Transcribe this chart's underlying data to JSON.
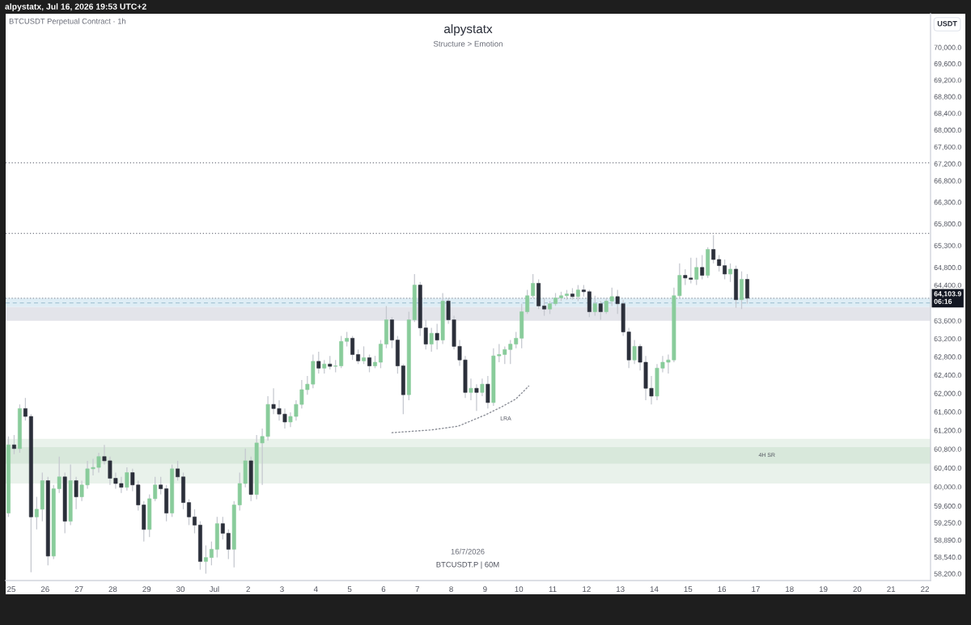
{
  "chart_data": {
    "type": "candlestick",
    "title": "alpystatx",
    "subtitle": "Structure > Emotion",
    "ylabel": "USDT",
    "annotations": [
      "alpystatx, Jul 16, 2026 19:53 UTC+2",
      "BTCUSDT Perpetual Contract · 1h",
      "16/7/2026",
      "BTCUSDT.P | 60M",
      "LRA"
    ],
    "log": "y",
    "grid": false,
    "xlim": [
      "2026-06-24T20:00",
      "2026-07-22T04:00"
    ],
    "ylim": [
      58060,
      70830
    ],
    "xticks": [
      {
        "value": "2026-06-25",
        "label": "25"
      },
      {
        "value": "2026-06-26",
        "label": "26"
      },
      {
        "value": "2026-06-27",
        "label": "27"
      },
      {
        "value": "2026-06-28",
        "label": "28"
      },
      {
        "value": "2026-06-29",
        "label": "29"
      },
      {
        "value": "2026-06-30",
        "label": "30"
      },
      {
        "value": "2026-07-01",
        "label": "Jul"
      },
      {
        "value": "2026-07-02",
        "label": "2"
      },
      {
        "value": "2026-07-03",
        "label": "3"
      },
      {
        "value": "2026-07-04",
        "label": "4"
      },
      {
        "value": "2026-07-05",
        "label": "5"
      },
      {
        "value": "2026-07-06",
        "label": "6"
      },
      {
        "value": "2026-07-07",
        "label": "7"
      },
      {
        "value": "2026-07-08",
        "label": "8"
      },
      {
        "value": "2026-07-09",
        "label": "9"
      },
      {
        "value": "2026-07-10",
        "label": "10"
      },
      {
        "value": "2026-07-11",
        "label": "11"
      },
      {
        "value": "2026-07-12",
        "label": "12"
      },
      {
        "value": "2026-07-13",
        "label": "13"
      },
      {
        "value": "2026-07-14",
        "label": "14"
      },
      {
        "value": "2026-07-15",
        "label": "15"
      },
      {
        "value": "2026-07-16",
        "label": "16"
      },
      {
        "value": "2026-07-17",
        "label": "17"
      },
      {
        "value": "2026-07-18",
        "label": "18"
      },
      {
        "value": "2026-07-19",
        "label": "19"
      },
      {
        "value": "2026-07-20",
        "label": "20"
      },
      {
        "value": "2026-07-21",
        "label": "21"
      },
      {
        "value": "2026-07-22",
        "label": "22"
      }
    ],
    "yticks": [
      {
        "value": 70000,
        "label": "70,000.0"
      },
      {
        "value": 69600,
        "label": "69,600.0"
      },
      {
        "value": 69200,
        "label": "69,200.0"
      },
      {
        "value": 68800,
        "label": "68,800.0"
      },
      {
        "value": 68400,
        "label": "68,400.0"
      },
      {
        "value": 68000,
        "label": "68,000.0"
      },
      {
        "value": 67600,
        "label": "67,600.0"
      },
      {
        "value": 67200,
        "label": "67,200.0"
      },
      {
        "value": 66800,
        "label": "66,800.0"
      },
      {
        "value": 66300,
        "label": "66,300.0"
      },
      {
        "value": 65800,
        "label": "65,800.0"
      },
      {
        "value": 65300,
        "label": "65,300.0"
      },
      {
        "value": 64800,
        "label": "64,800.0"
      },
      {
        "value": 64400,
        "label": "64,400.0"
      },
      {
        "value": 63600,
        "label": "63,600.0"
      },
      {
        "value": 63200,
        "label": "63,200.0"
      },
      {
        "value": 62800,
        "label": "62,800.0"
      },
      {
        "value": 62400,
        "label": "62,400.0"
      },
      {
        "value": 62000,
        "label": "62,000.0"
      },
      {
        "value": 61600,
        "label": "61,600.0"
      },
      {
        "value": 61200,
        "label": "61,200.0"
      },
      {
        "value": 60800,
        "label": "60,800.0"
      },
      {
        "value": 60400,
        "label": "60,400.0"
      },
      {
        "value": 60000,
        "label": "60,000.0"
      },
      {
        "value": 59600,
        "label": "59,600.0"
      },
      {
        "value": 59250,
        "label": "59,250.0"
      },
      {
        "value": 58890,
        "label": "58,890.0"
      },
      {
        "value": 58540,
        "label": "58,540.0"
      },
      {
        "value": 58200,
        "label": "58,200.0"
      }
    ],
    "bands": [
      {
        "axis": "y",
        "from": 63600,
        "to": 63910,
        "color": "#e3e4ea"
      },
      {
        "axis": "y",
        "from": 63910,
        "to": 64110,
        "color": "#deedf5"
      },
      {
        "axis": "y",
        "from": 60070,
        "to": 61020,
        "color": "#e9f2eb"
      },
      {
        "axis": "y",
        "from": 60490,
        "to": 60840,
        "color": "#d8e8db",
        "label": "4H SR"
      }
    ],
    "ref_lines": [
      {
        "axis": "y",
        "value": 67220,
        "line_style": "dotted",
        "color": "#787b86"
      },
      {
        "axis": "y",
        "value": 65580,
        "line_style": "dotted",
        "color": "#787b86"
      },
      {
        "axis": "y",
        "value": 64000,
        "line_style": "dashed",
        "color": "#a9c6d6"
      },
      {
        "axis": "y",
        "value": 64103.9,
        "line_style": "dotted",
        "color": "#9598a1",
        "label": "64,103.9\n06:16"
      }
    ],
    "series": [
      {
        "type": "line",
        "line_style": "dotted",
        "color": "#8a8d96",
        "x": [
          "2026-07-06T06:00",
          "2026-07-07T10:00",
          "2026-07-08T05:00",
          "2026-07-09T00:00",
          "2026-07-09T12:00",
          "2026-07-09T22:00",
          "2026-07-10T07:00"
        ],
        "values": [
          61150,
          61210,
          61290,
          61530,
          61710,
          61880,
          62160
        ]
      },
      {
        "color": "#c5c8cf",
        "x": [
          "2026-06-24T22:00",
          "2026-06-25T02:00",
          "2026-06-25T06:00",
          "2026-06-25T10:00",
          "2026-06-25T14:00",
          "2026-06-25T18:00",
          "2026-06-25T22:00",
          "2026-06-26T02:00",
          "2026-06-26T06:00",
          "2026-06-26T10:00",
          "2026-06-26T14:00",
          "2026-06-26T18:00",
          "2026-06-26T22:00",
          "2026-06-27T02:00",
          "2026-06-27T06:00",
          "2026-06-27T10:00",
          "2026-06-27T14:00",
          "2026-06-27T18:00",
          "2026-06-27T22:00",
          "2026-06-28T02:00",
          "2026-06-28T06:00",
          "2026-06-28T10:00",
          "2026-06-28T14:00",
          "2026-06-28T18:00",
          "2026-06-28T22:00",
          "2026-06-29T02:00",
          "2026-06-29T06:00",
          "2026-06-29T10:00",
          "2026-06-29T14:00",
          "2026-06-29T18:00",
          "2026-06-29T22:00",
          "2026-06-30T02:00",
          "2026-06-30T06:00",
          "2026-06-30T10:00",
          "2026-06-30T14:00",
          "2026-06-30T18:00",
          "2026-06-30T22:00",
          "2026-07-01T02:00",
          "2026-07-01T06:00",
          "2026-07-01T10:00",
          "2026-07-01T14:00",
          "2026-07-01T18:00",
          "2026-07-01T22:00",
          "2026-07-02T02:00",
          "2026-07-02T06:00",
          "2026-07-02T10:00",
          "2026-07-02T14:00",
          "2026-07-02T18:00",
          "2026-07-02T22:00",
          "2026-07-03T02:00",
          "2026-07-03T06:00",
          "2026-07-03T10:00",
          "2026-07-03T14:00",
          "2026-07-03T18:00",
          "2026-07-03T22:00",
          "2026-07-04T02:00",
          "2026-07-04T06:00",
          "2026-07-04T10:00",
          "2026-07-04T14:00",
          "2026-07-04T18:00",
          "2026-07-04T22:00",
          "2026-07-05T02:00",
          "2026-07-05T06:00",
          "2026-07-05T10:00",
          "2026-07-05T14:00",
          "2026-07-05T18:00",
          "2026-07-05T22:00",
          "2026-07-06T02:00",
          "2026-07-06T06:00",
          "2026-07-06T10:00",
          "2026-07-06T14:00",
          "2026-07-06T18:00",
          "2026-07-06T22:00",
          "2026-07-07T02:00",
          "2026-07-07T06:00",
          "2026-07-07T10:00",
          "2026-07-07T14:00",
          "2026-07-07T18:00",
          "2026-07-07T22:00",
          "2026-07-08T02:00",
          "2026-07-08T06:00",
          "2026-07-08T10:00",
          "2026-07-08T14:00",
          "2026-07-08T18:00",
          "2026-07-08T22:00",
          "2026-07-09T02:00",
          "2026-07-09T06:00",
          "2026-07-09T10:00",
          "2026-07-09T14:00",
          "2026-07-09T18:00",
          "2026-07-09T22:00",
          "2026-07-10T02:00",
          "2026-07-10T06:00",
          "2026-07-10T10:00",
          "2026-07-10T14:00",
          "2026-07-10T18:00",
          "2026-07-10T22:00",
          "2026-07-11T02:00",
          "2026-07-11T06:00",
          "2026-07-11T10:00",
          "2026-07-11T14:00",
          "2026-07-11T18:00",
          "2026-07-11T22:00",
          "2026-07-12T02:00",
          "2026-07-12T06:00",
          "2026-07-12T10:00",
          "2026-07-12T14:00",
          "2026-07-12T18:00",
          "2026-07-12T22:00",
          "2026-07-13T02:00",
          "2026-07-13T06:00",
          "2026-07-13T10:00",
          "2026-07-13T14:00",
          "2026-07-13T18:00",
          "2026-07-13T22:00",
          "2026-07-14T02:00",
          "2026-07-14T06:00",
          "2026-07-14T10:00",
          "2026-07-14T14:00",
          "2026-07-14T18:00",
          "2026-07-14T22:00",
          "2026-07-15T02:00",
          "2026-07-15T06:00",
          "2026-07-15T10:00",
          "2026-07-15T14:00",
          "2026-07-15T18:00",
          "2026-07-15T22:00",
          "2026-07-16T02:00",
          "2026-07-16T06:00",
          "2026-07-16T10:00",
          "2026-07-16T14:00",
          "2026-07-16T18:00"
        ],
        "ohlc": [
          [
            59450,
            61070,
            59370,
            60890
          ],
          [
            60890,
            61100,
            60690,
            60810
          ],
          [
            60810,
            61760,
            60720,
            61670
          ],
          [
            61670,
            61900,
            61410,
            61500
          ],
          [
            61500,
            61550,
            58230,
            59370
          ],
          [
            59370,
            59790,
            59110,
            59530
          ],
          [
            59530,
            60300,
            59280,
            60130
          ],
          [
            60130,
            60210,
            58370,
            58560
          ],
          [
            58560,
            60040,
            58500,
            59960
          ],
          [
            59960,
            60640,
            59870,
            60210
          ],
          [
            60210,
            60300,
            59030,
            59280
          ],
          [
            59280,
            60470,
            59200,
            60130
          ],
          [
            60130,
            60210,
            59530,
            59790
          ],
          [
            59790,
            60130,
            59700,
            60040
          ],
          [
            60040,
            60550,
            59960,
            60380
          ],
          [
            60380,
            60590,
            60240,
            60410
          ],
          [
            60410,
            60720,
            60300,
            60640
          ],
          [
            60640,
            60890,
            60470,
            60550
          ],
          [
            60550,
            60640,
            60040,
            60180
          ],
          [
            60180,
            60300,
            59960,
            60070
          ],
          [
            60070,
            60210,
            59870,
            59990
          ],
          [
            59990,
            60410,
            59920,
            60300
          ],
          [
            60300,
            60380,
            59910,
            60040
          ],
          [
            60040,
            60130,
            59500,
            59620
          ],
          [
            59620,
            59700,
            58860,
            59110
          ],
          [
            59110,
            59840,
            58950,
            59750
          ],
          [
            59750,
            60210,
            59700,
            60040
          ],
          [
            60040,
            60210,
            59840,
            59960
          ],
          [
            59960,
            60040,
            59280,
            59450
          ],
          [
            59450,
            60470,
            59370,
            60380
          ],
          [
            60380,
            60550,
            60130,
            60210
          ],
          [
            60210,
            60300,
            59530,
            59670
          ],
          [
            59670,
            59740,
            59200,
            59370
          ],
          [
            59370,
            59530,
            59030,
            59200
          ],
          [
            59200,
            59280,
            58280,
            58450
          ],
          [
            58450,
            58780,
            58200,
            58530
          ],
          [
            58530,
            58860,
            58370,
            58700
          ],
          [
            58700,
            59370,
            58530,
            59230
          ],
          [
            59230,
            59370,
            58900,
            59030
          ],
          [
            59030,
            59110,
            58500,
            58700
          ],
          [
            58700,
            59700,
            58330,
            59620
          ],
          [
            59620,
            60300,
            59500,
            60070
          ],
          [
            60070,
            60810,
            59990,
            60550
          ],
          [
            60550,
            60640,
            59700,
            59840
          ],
          [
            59840,
            61100,
            59740,
            60930
          ],
          [
            60930,
            61240,
            60040,
            61070
          ],
          [
            61070,
            61940,
            60980,
            61760
          ],
          [
            61760,
            62110,
            61550,
            61670
          ],
          [
            61670,
            61850,
            61410,
            61550
          ],
          [
            61550,
            61670,
            61240,
            61380
          ],
          [
            61380,
            61590,
            61270,
            61500
          ],
          [
            61500,
            61850,
            61410,
            61760
          ],
          [
            61760,
            62290,
            61670,
            62080
          ],
          [
            62080,
            62380,
            61970,
            62200
          ],
          [
            62200,
            62850,
            62110,
            62700
          ],
          [
            62700,
            62910,
            62430,
            62550
          ],
          [
            62550,
            62730,
            62430,
            62640
          ],
          [
            62640,
            62820,
            62520,
            62590
          ],
          [
            62590,
            62730,
            62460,
            62600
          ],
          [
            62600,
            63260,
            62550,
            63140
          ],
          [
            63140,
            63350,
            63030,
            63210
          ],
          [
            63210,
            63260,
            62730,
            62850
          ],
          [
            62850,
            62960,
            62640,
            62710
          ],
          [
            62710,
            63030,
            62640,
            62780
          ],
          [
            62780,
            62850,
            62460,
            62600
          ],
          [
            62600,
            62820,
            62550,
            62680
          ],
          [
            62680,
            63170,
            62550,
            63080
          ],
          [
            63080,
            63930,
            62990,
            63620
          ],
          [
            63620,
            63680,
            62990,
            63170
          ],
          [
            63170,
            63260,
            62430,
            62600
          ],
          [
            62600,
            62640,
            61550,
            61970
          ],
          [
            61970,
            63800,
            61850,
            63620
          ],
          [
            63620,
            64650,
            63570,
            64400
          ],
          [
            64400,
            64470,
            63260,
            63440
          ],
          [
            63440,
            63620,
            62960,
            63080
          ],
          [
            63080,
            63440,
            62910,
            63320
          ],
          [
            63320,
            63530,
            62960,
            63170
          ],
          [
            63170,
            64220,
            63080,
            64040
          ],
          [
            64040,
            64110,
            63530,
            63620
          ],
          [
            63620,
            63710,
            62960,
            63030
          ],
          [
            63030,
            63170,
            62600,
            62730
          ],
          [
            62730,
            62820,
            61900,
            62020
          ],
          [
            62020,
            62320,
            61850,
            62110
          ],
          [
            62110,
            62200,
            61620,
            62020
          ],
          [
            62020,
            62320,
            61940,
            62200
          ],
          [
            62200,
            62380,
            61670,
            61800
          ],
          [
            61800,
            62990,
            61730,
            62820
          ],
          [
            62820,
            63080,
            62680,
            62850
          ],
          [
            62850,
            63030,
            62640,
            62960
          ],
          [
            62960,
            63170,
            62640,
            63080
          ],
          [
            63080,
            63350,
            62990,
            63210
          ],
          [
            63210,
            63980,
            62990,
            63800
          ],
          [
            63800,
            64290,
            63750,
            64160
          ],
          [
            64160,
            64650,
            64110,
            64440
          ],
          [
            64440,
            64530,
            63860,
            63930
          ],
          [
            63930,
            64110,
            63710,
            63860
          ],
          [
            63860,
            64040,
            63750,
            63980
          ],
          [
            63980,
            64220,
            63930,
            64110
          ],
          [
            64110,
            64250,
            64040,
            64160
          ],
          [
            64160,
            64290,
            64070,
            64200
          ],
          [
            64200,
            64330,
            64070,
            64140
          ],
          [
            64140,
            64400,
            64040,
            64290
          ],
          [
            64290,
            64400,
            64140,
            64250
          ],
          [
            64250,
            64290,
            63680,
            63800
          ],
          [
            63800,
            64160,
            63710,
            63980
          ],
          [
            63980,
            64040,
            63620,
            63800
          ],
          [
            63800,
            64110,
            63750,
            64040
          ],
          [
            64040,
            64340,
            63930,
            64140
          ],
          [
            64140,
            64290,
            63750,
            63980
          ],
          [
            63980,
            64070,
            63260,
            63350
          ],
          [
            63350,
            63440,
            62550,
            62730
          ],
          [
            62730,
            63170,
            62640,
            63030
          ],
          [
            63030,
            63080,
            62500,
            62680
          ],
          [
            62680,
            62820,
            61850,
            62110
          ],
          [
            62110,
            62380,
            61760,
            61940
          ],
          [
            61940,
            62640,
            61850,
            62550
          ],
          [
            62550,
            62820,
            62460,
            62680
          ],
          [
            62680,
            62850,
            62430,
            62730
          ],
          [
            62730,
            64340,
            62680,
            64160
          ],
          [
            64160,
            64890,
            64110,
            64620
          ],
          [
            64620,
            64760,
            64400,
            64560
          ],
          [
            64560,
            65020,
            64440,
            64530
          ],
          [
            64530,
            65020,
            64400,
            64800
          ],
          [
            64800,
            65080,
            64530,
            64620
          ],
          [
            64620,
            65260,
            64560,
            65210
          ],
          [
            65210,
            65540,
            64890,
            64980
          ],
          [
            64980,
            65080,
            64710,
            64840
          ],
          [
            64840,
            64980,
            64530,
            64650
          ],
          [
            64650,
            64890,
            64470,
            64760
          ],
          [
            64760,
            64840,
            63890,
            64070
          ],
          [
            64070,
            64710,
            63860,
            64530
          ],
          [
            64530,
            64650,
            63980,
            64103.9
          ]
        ],
        "colors": [
          "#89cc9b",
          "#2b2f3a",
          "#89cc9b",
          "#2b2f3a",
          "#2b2f3a",
          "#89cc9b",
          "#89cc9b",
          "#2b2f3a",
          "#89cc9b",
          "#89cc9b",
          "#2b2f3a",
          "#89cc9b",
          "#2b2f3a",
          "#89cc9b",
          "#89cc9b",
          "#89cc9b",
          "#89cc9b",
          "#2b2f3a",
          "#2b2f3a",
          "#2b2f3a",
          "#2b2f3a",
          "#89cc9b",
          "#2b2f3a",
          "#2b2f3a",
          "#2b2f3a",
          "#89cc9b",
          "#89cc9b",
          "#2b2f3a",
          "#2b2f3a",
          "#89cc9b",
          "#2b2f3a",
          "#2b2f3a",
          "#2b2f3a",
          "#2b2f3a",
          "#2b2f3a",
          "#89cc9b",
          "#89cc9b",
          "#89cc9b",
          "#2b2f3a",
          "#2b2f3a",
          "#89cc9b",
          "#89cc9b",
          "#89cc9b",
          "#2b2f3a",
          "#89cc9b",
          "#89cc9b",
          "#89cc9b",
          "#2b2f3a",
          "#2b2f3a",
          "#2b2f3a",
          "#89cc9b",
          "#89cc9b",
          "#89cc9b",
          "#89cc9b",
          "#89cc9b",
          "#2b2f3a",
          "#89cc9b",
          "#2b2f3a",
          "#89cc9b",
          "#89cc9b",
          "#89cc9b",
          "#2b2f3a",
          "#2b2f3a",
          "#89cc9b",
          "#2b2f3a",
          "#89cc9b",
          "#89cc9b",
          "#89cc9b",
          "#2b2f3a",
          "#2b2f3a",
          "#2b2f3a",
          "#89cc9b",
          "#89cc9b",
          "#2b2f3a",
          "#2b2f3a",
          "#89cc9b",
          "#2b2f3a",
          "#89cc9b",
          "#2b2f3a",
          "#2b2f3a",
          "#2b2f3a",
          "#2b2f3a",
          "#89cc9b",
          "#2b2f3a",
          "#89cc9b",
          "#2b2f3a",
          "#89cc9b",
          "#89cc9b",
          "#89cc9b",
          "#89cc9b",
          "#89cc9b",
          "#89cc9b",
          "#89cc9b",
          "#89cc9b",
          "#2b2f3a",
          "#2b2f3a",
          "#89cc9b",
          "#89cc9b",
          "#89cc9b",
          "#89cc9b",
          "#2b2f3a",
          "#89cc9b",
          "#2b2f3a",
          "#2b2f3a",
          "#89cc9b",
          "#2b2f3a",
          "#89cc9b",
          "#89cc9b",
          "#2b2f3a",
          "#2b2f3a",
          "#2b2f3a",
          "#89cc9b",
          "#2b2f3a",
          "#2b2f3a",
          "#2b2f3a",
          "#89cc9b",
          "#89cc9b",
          "#89cc9b",
          "#89cc9b",
          "#89cc9b",
          "#2b2f3a",
          "#2b2f3a",
          "#89cc9b",
          "#2b2f3a",
          "#89cc9b",
          "#2b2f3a",
          "#2b2f3a",
          "#2b2f3a",
          "#89cc9b",
          "#2b2f3a",
          "#89cc9b",
          "#2b2f3a"
        ]
      }
    ]
  }
}
